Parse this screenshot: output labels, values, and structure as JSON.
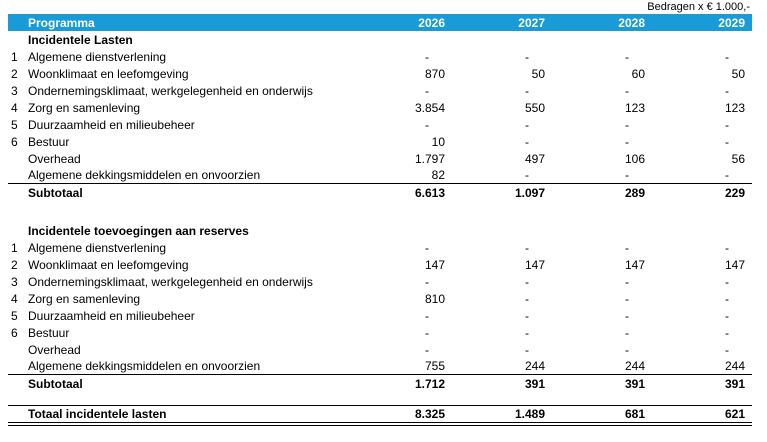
{
  "note": "Bedragen x € 1.000,-",
  "header": {
    "program": "Programma",
    "years": [
      "2026",
      "2027",
      "2028",
      "2029"
    ]
  },
  "sections": [
    {
      "title": "Incidentele Lasten",
      "rows": [
        {
          "num": "1",
          "label": "Algemene dienstverlening",
          "values": [
            "-",
            "-",
            "-",
            "-"
          ]
        },
        {
          "num": "2",
          "label": "Woonklimaat en leefomgeving",
          "values": [
            "870",
            "50",
            "60",
            "50"
          ]
        },
        {
          "num": "3",
          "label": "Ondernemingsklimaat, werkgelegenheid en onderwijs",
          "values": [
            "-",
            "-",
            "-",
            "-"
          ]
        },
        {
          "num": "4",
          "label": "Zorg en samenleving",
          "values": [
            "3.854",
            "550",
            "123",
            "123"
          ]
        },
        {
          "num": "5",
          "label": "Duurzaamheid en milieubeheer",
          "values": [
            "-",
            "-",
            "-",
            "-"
          ]
        },
        {
          "num": "6",
          "label": "Bestuur",
          "values": [
            "10",
            "-",
            "-",
            "-"
          ]
        },
        {
          "num": "",
          "label": "Overhead",
          "values": [
            "1.797",
            "497",
            "106",
            "56"
          ]
        },
        {
          "num": "",
          "label": "Algemene dekkingsmiddelen en onvoorzien",
          "values": [
            "82",
            "-",
            "-",
            "-"
          ]
        }
      ],
      "subtotal": {
        "label": "Subtotaal",
        "values": [
          "6.613",
          "1.097",
          "289",
          "229"
        ]
      }
    },
    {
      "title": "Incidentele toevoegingen aan reserves",
      "rows": [
        {
          "num": "1",
          "label": "Algemene dienstverlening",
          "values": [
            "-",
            "-",
            "-",
            "-"
          ]
        },
        {
          "num": "2",
          "label": "Woonklimaat en leefomgeving",
          "values": [
            "147",
            "147",
            "147",
            "147"
          ]
        },
        {
          "num": "3",
          "label": "Ondernemingsklimaat, werkgelegenheid en onderwijs",
          "values": [
            "-",
            "-",
            "-",
            "-"
          ]
        },
        {
          "num": "4",
          "label": "Zorg en samenleving",
          "values": [
            "810",
            "-",
            "-",
            "-"
          ]
        },
        {
          "num": "5",
          "label": "Duurzaamheid en milieubeheer",
          "values": [
            "-",
            "-",
            "-",
            "-"
          ]
        },
        {
          "num": "6",
          "label": "Bestuur",
          "values": [
            "-",
            "-",
            "-",
            "-"
          ]
        },
        {
          "num": "",
          "label": "Overhead",
          "values": [
            "-",
            "-",
            "-",
            "-"
          ]
        },
        {
          "num": "",
          "label": "Algemene dekkingsmiddelen en onvoorzien",
          "values": [
            "755",
            "244",
            "244",
            "244"
          ]
        }
      ],
      "subtotal": {
        "label": "Subtotaal",
        "values": [
          "1.712",
          "391",
          "391",
          "391"
        ]
      }
    }
  ],
  "total": {
    "label": "Totaal incidentele lasten",
    "values": [
      "8.325",
      "1.489",
      "681",
      "621"
    ]
  },
  "colors": {
    "header_bg": "#189BD7",
    "header_text": "#FFFFFF"
  }
}
